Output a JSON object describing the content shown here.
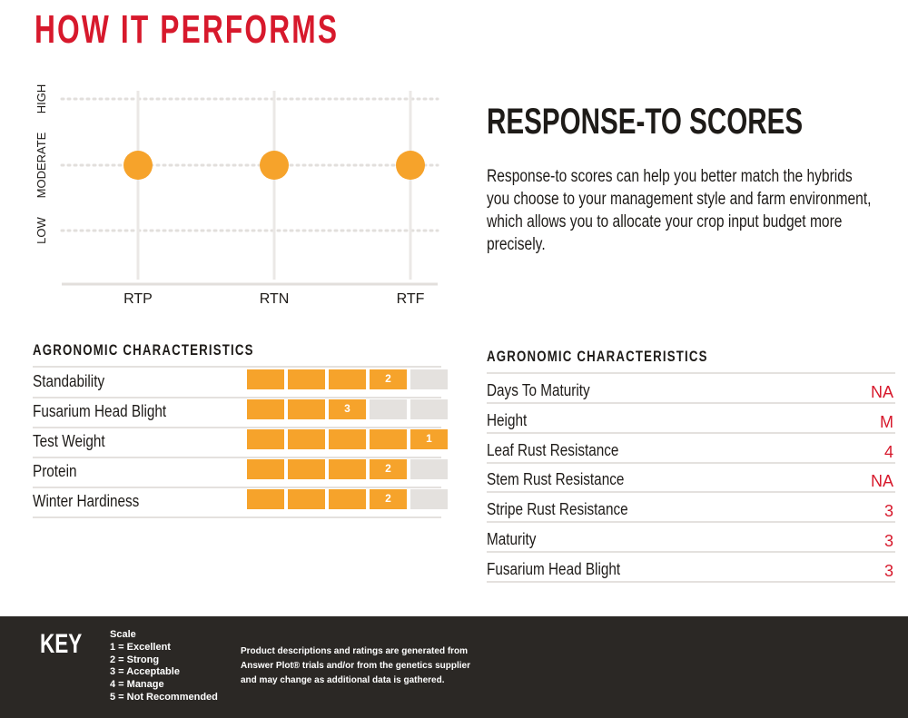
{
  "header": {
    "title": "HOW IT PERFORMS"
  },
  "response_chart": {
    "type": "scatter",
    "y_levels": [
      "LOW",
      "MODERATE",
      "HIGH"
    ],
    "categories": [
      "RTP",
      "RTN",
      "RTF"
    ],
    "values": [
      "MODERATE",
      "MODERATE",
      "MODERATE"
    ],
    "marker_color": "#f6a32b",
    "grid": true
  },
  "chart_data": {
    "type": "scatter",
    "categories": [
      "RTP",
      "RTN",
      "RTF"
    ],
    "y_categories": [
      "LOW",
      "MODERATE",
      "HIGH"
    ],
    "values": [
      "MODERATE",
      "MODERATE",
      "MODERATE"
    ]
  },
  "response_scores": {
    "heading": "RESPONSE-TO SCORES",
    "body": "Response-to scores can help you better match the hybrids you choose to your management style and farm environment, which allows you to allocate your crop input budget more precisely."
  },
  "left_characteristics": {
    "heading": "AGRONOMIC CHARACTERISTICS",
    "scale_max": 5,
    "rows": [
      {
        "label": "Standability",
        "score": 2
      },
      {
        "label": "Fusarium Head Blight",
        "score": 3
      },
      {
        "label": "Test Weight",
        "score": 1
      },
      {
        "label": "Protein",
        "score": 2
      },
      {
        "label": "Winter Hardiness",
        "score": 2
      }
    ]
  },
  "right_characteristics": {
    "heading": "AGRONOMIC CHARACTERISTICS",
    "rows": [
      {
        "label": "Days To Maturity",
        "value": "NA"
      },
      {
        "label": "Height",
        "value": "M"
      },
      {
        "label": "Leaf Rust Resistance",
        "value": "4"
      },
      {
        "label": "Stem Rust Resistance",
        "value": "NA"
      },
      {
        "label": "Stripe Rust Resistance",
        "value": "3"
      },
      {
        "label": "Maturity",
        "value": "3"
      },
      {
        "label": "Fusarium Head Blight",
        "value": "3"
      }
    ]
  },
  "key": {
    "title": "KEY",
    "scale_title": "Scale",
    "scale_items": [
      "1 = Excellent",
      "2 = Strong",
      "3 = Acceptable",
      "4 = Manage",
      "5 = Not Recommended"
    ],
    "disclaimer": "Product descriptions and ratings are generated from Answer Plot® trials and/or from the genetics supplier and may change as additional data is gathered."
  },
  "colors": {
    "accent_red": "#d7192c",
    "bar_orange": "#f6a32b",
    "bar_empty": "#e4e1de",
    "footer_bg": "#2b2825"
  }
}
